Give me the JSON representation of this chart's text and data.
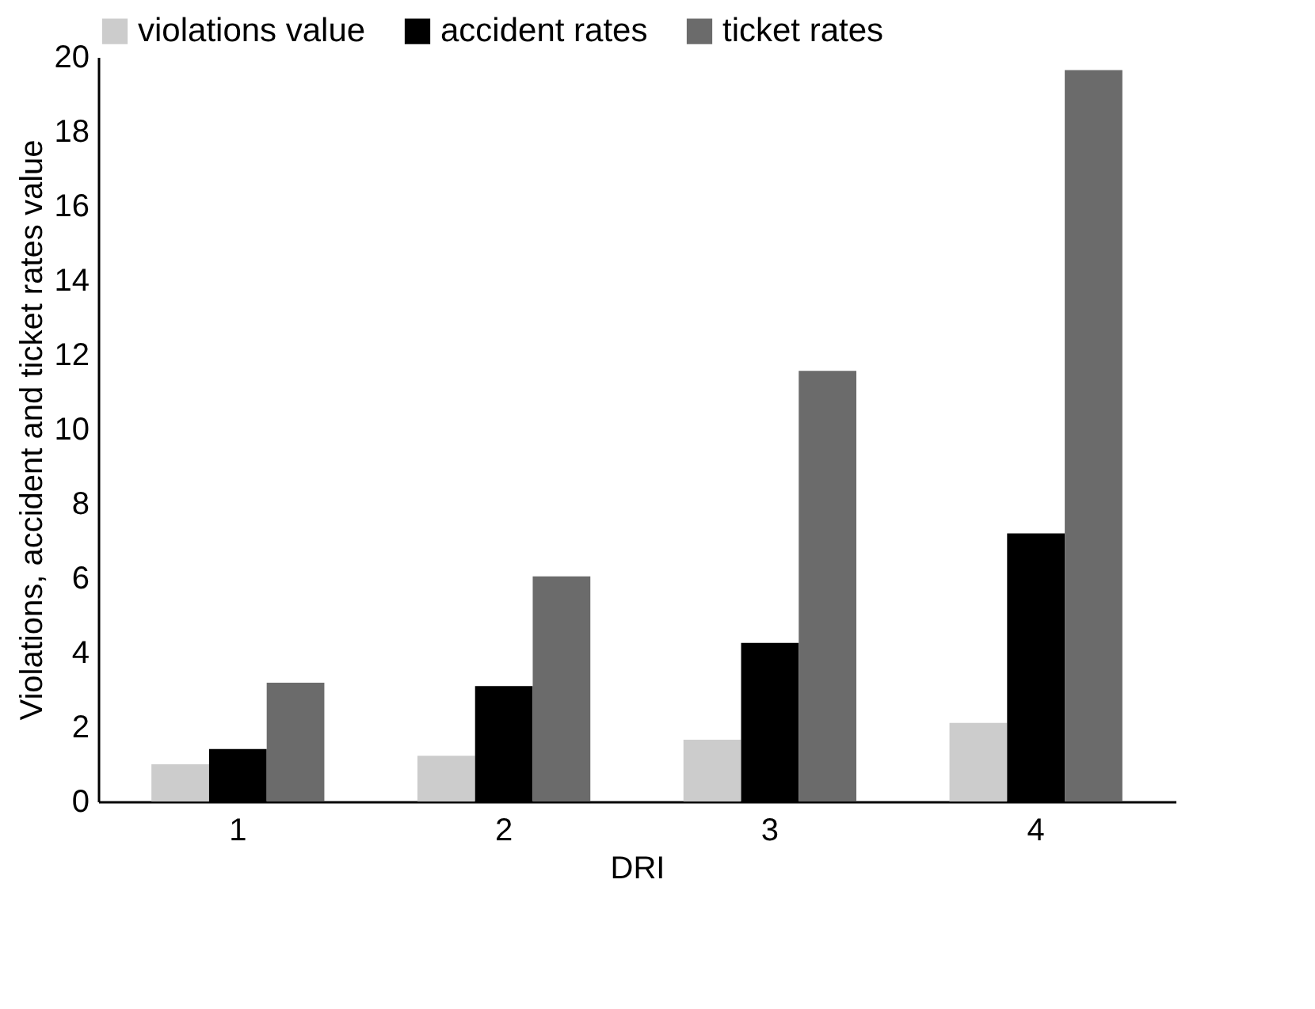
{
  "chart_data": {
    "type": "bar",
    "xlabel": "DRI",
    "ylabel": "Violations, accident and ticket rates value",
    "categories": [
      "1",
      "2",
      "3",
      "4"
    ],
    "series": [
      {
        "name": "violations value",
        "color": "#cccccc",
        "values": [
          1.0,
          1.23,
          1.66,
          2.11
        ]
      },
      {
        "name": "accident rates",
        "color": "#000000",
        "values": [
          1.41,
          3.1,
          4.26,
          7.2
        ]
      },
      {
        "name": "ticket rates",
        "color": "#6b6b6b",
        "values": [
          3.19,
          6.05,
          11.57,
          19.65
        ]
      }
    ],
    "ylim": [
      0,
      20
    ],
    "yticks": [
      0,
      2,
      4,
      6,
      8,
      10,
      12,
      14,
      16,
      18,
      20
    ],
    "grid": false,
    "legend": "top left"
  }
}
